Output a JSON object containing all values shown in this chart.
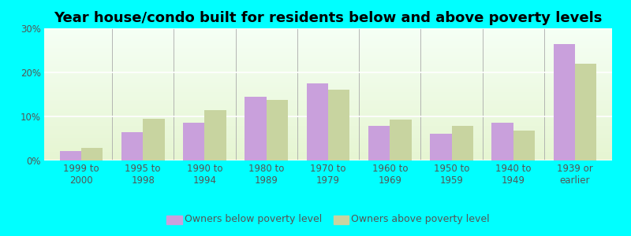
{
  "title": "Year house/condo built for residents below and above poverty levels",
  "categories": [
    "1999 to\n2000",
    "1995 to\n1998",
    "1990 to\n1994",
    "1980 to\n1989",
    "1970 to\n1979",
    "1960 to\n1969",
    "1950 to\n1959",
    "1940 to\n1949",
    "1939 or\nearlier"
  ],
  "below_poverty": [
    2.2,
    6.5,
    8.5,
    14.5,
    17.5,
    7.8,
    6.0,
    8.5,
    26.5
  ],
  "above_poverty": [
    2.8,
    9.5,
    11.5,
    13.8,
    16.0,
    9.2,
    7.8,
    6.8,
    22.0
  ],
  "below_color": "#c9a0dc",
  "above_color": "#c8d4a0",
  "ylim": [
    0,
    30
  ],
  "yticks": [
    0,
    10,
    20,
    30
  ],
  "ytick_labels": [
    "0%",
    "10%",
    "20%",
    "30%"
  ],
  "bar_width": 0.35,
  "background_color": "#00ffff",
  "legend_below": "Owners below poverty level",
  "legend_above": "Owners above poverty level",
  "title_fontsize": 13,
  "tick_fontsize": 8.5,
  "legend_fontsize": 9,
  "label_color": "#555555"
}
